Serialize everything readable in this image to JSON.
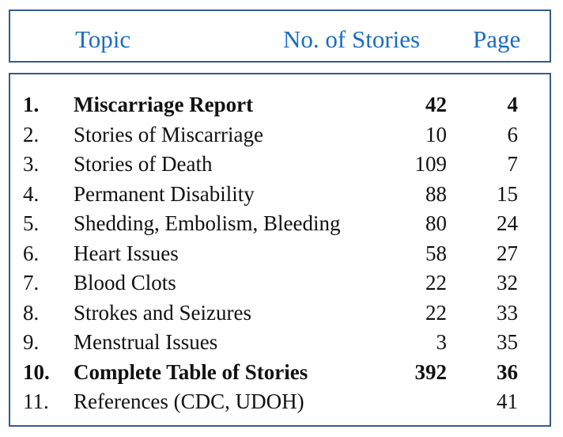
{
  "header": {
    "topic_label": "Topic",
    "stories_label": "No. of Stories",
    "page_label": "Page"
  },
  "rows": [
    {
      "num": "1.",
      "topic": "Miscarriage Report",
      "stories": "42",
      "page": "4",
      "bold": true
    },
    {
      "num": "2.",
      "topic": "Stories of Miscarriage",
      "stories": "10",
      "page": "6",
      "bold": false
    },
    {
      "num": "3.",
      "topic": "Stories of Death",
      "stories": "109",
      "page": "7",
      "bold": false
    },
    {
      "num": "4.",
      "topic": "Permanent Disability",
      "stories": "88",
      "page": "15",
      "bold": false
    },
    {
      "num": "5.",
      "topic": "Shedding, Embolism, Bleeding",
      "stories": "80",
      "page": "24",
      "bold": false
    },
    {
      "num": "6.",
      "topic": "Heart Issues",
      "stories": "58",
      "page": "27",
      "bold": false
    },
    {
      "num": "7.",
      "topic": "Blood Clots",
      "stories": "22",
      "page": "32",
      "bold": false
    },
    {
      "num": "8.",
      "topic": "Strokes and Seizures",
      "stories": "22",
      "page": "33",
      "bold": false
    },
    {
      "num": "9.",
      "topic": "Menstrual Issues",
      "stories": "3",
      "page": "35",
      "bold": false
    },
    {
      "num": "10.",
      "topic": "Complete Table of Stories",
      "stories": "392",
      "page": "36",
      "bold": true
    },
    {
      "num": "11.",
      "topic": "References (CDC, UDOH)",
      "stories": "",
      "page": "41",
      "bold": false
    }
  ],
  "colors": {
    "border": "#3a5a8c",
    "header_text": "#1a6cc4",
    "body_text": "#111111"
  }
}
